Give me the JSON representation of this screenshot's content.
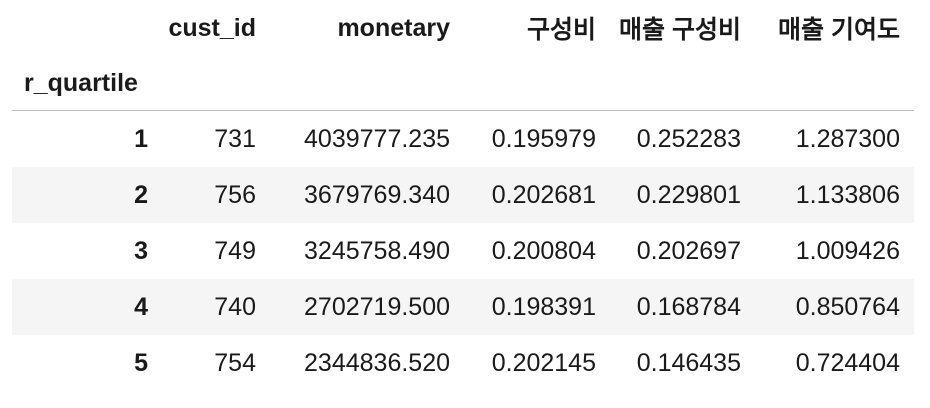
{
  "dataframe": {
    "index_name": "r_quartile",
    "columns": [
      "cust_id",
      "monetary",
      "구성비",
      "매출 구성비",
      "매출 기여도"
    ],
    "rows": [
      {
        "index": "1",
        "values": [
          "731",
          "4039777.235",
          "0.195979",
          "0.252283",
          "1.287300"
        ]
      },
      {
        "index": "2",
        "values": [
          "756",
          "3679769.340",
          "0.202681",
          "0.229801",
          "1.133806"
        ]
      },
      {
        "index": "3",
        "values": [
          "749",
          "3245758.490",
          "0.200804",
          "0.202697",
          "1.009426"
        ]
      },
      {
        "index": "4",
        "values": [
          "740",
          "2702719.500",
          "0.198391",
          "0.168784",
          "0.850764"
        ]
      },
      {
        "index": "5",
        "values": [
          "754",
          "2344836.520",
          "0.202145",
          "0.146435",
          "0.724404"
        ]
      }
    ]
  }
}
